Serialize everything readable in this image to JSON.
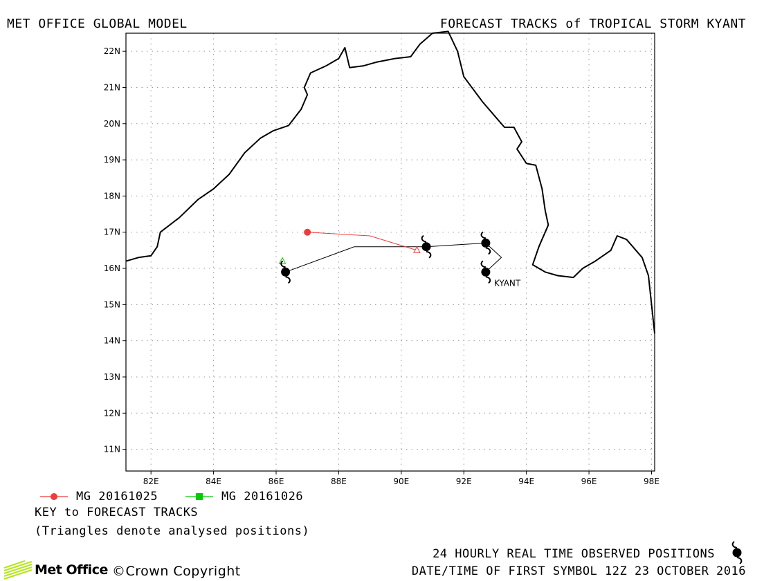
{
  "header": {
    "left_title": "MET OFFICE GLOBAL MODEL",
    "right_title": "FORECAST TRACKS of TROPICAL STORM KYANT"
  },
  "map": {
    "lon_ticks": [
      "82E",
      "84E",
      "86E",
      "88E",
      "90E",
      "92E",
      "94E",
      "96E",
      "98E"
    ],
    "lat_ticks": [
      "22N",
      "21N",
      "20N",
      "19N",
      "18N",
      "17N",
      "16N",
      "15N",
      "14N",
      "13N",
      "12N",
      "11N"
    ],
    "storm_label": "KYANT",
    "colors": {
      "track_red": "#ee3b3b",
      "track_green": "#00cc00",
      "observed": "#000000",
      "coast": "#000000"
    }
  },
  "chart_data": {
    "type": "map-tracks",
    "xlim": [
      81.2,
      98.1
    ],
    "ylim": [
      10.4,
      22.5
    ],
    "observed_track": {
      "name": "24 HOURLY REAL TIME OBSERVED POSITIONS",
      "points": [
        [
          92.7,
          15.9
        ],
        [
          92.7,
          16.7
        ],
        [
          90.8,
          16.6
        ],
        [
          86.3,
          15.9
        ]
      ]
    },
    "observed_path": [
      [
        92.7,
        15.9
      ],
      [
        93.2,
        16.3
      ],
      [
        92.7,
        16.7
      ],
      [
        90.8,
        16.6
      ],
      [
        88.5,
        16.6
      ],
      [
        86.3,
        15.9
      ]
    ],
    "forecast_tracks": [
      {
        "name": "MG 20161025",
        "color": "#ee3b3b",
        "points": [
          [
            87.0,
            17.0
          ],
          [
            89.0,
            16.9
          ],
          [
            90.5,
            16.5
          ]
        ],
        "analysed": [
          90.5,
          16.5
        ]
      },
      {
        "name": "MG 20161026",
        "color": "#00cc00",
        "points": [
          [
            86.2,
            16.2
          ]
        ],
        "analysed": [
          86.2,
          16.2
        ]
      }
    ],
    "coastline": [
      [
        81.2,
        16.2
      ],
      [
        81.6,
        16.3
      ],
      [
        82.0,
        16.35
      ],
      [
        82.2,
        16.6
      ],
      [
        82.3,
        17.0
      ],
      [
        82.9,
        17.4
      ],
      [
        83.5,
        17.9
      ],
      [
        84.0,
        18.2
      ],
      [
        84.5,
        18.6
      ],
      [
        85.0,
        19.2
      ],
      [
        85.5,
        19.6
      ],
      [
        85.9,
        19.8
      ],
      [
        86.4,
        19.95
      ],
      [
        86.8,
        20.4
      ],
      [
        87.0,
        20.8
      ],
      [
        86.9,
        21.0
      ],
      [
        87.1,
        21.4
      ],
      [
        87.6,
        21.6
      ],
      [
        88.0,
        21.8
      ],
      [
        88.2,
        22.1
      ],
      [
        88.35,
        21.55
      ],
      [
        88.8,
        21.6
      ],
      [
        89.2,
        21.7
      ],
      [
        89.8,
        21.8
      ],
      [
        90.3,
        21.85
      ],
      [
        90.6,
        22.2
      ],
      [
        91.0,
        22.5
      ],
      [
        91.5,
        22.55
      ],
      [
        91.8,
        22.0
      ],
      [
        92.0,
        21.3
      ],
      [
        92.6,
        20.6
      ],
      [
        93.0,
        20.2
      ],
      [
        93.3,
        19.9
      ],
      [
        93.6,
        19.9
      ],
      [
        93.85,
        19.5
      ],
      [
        93.7,
        19.3
      ],
      [
        94.0,
        18.9
      ],
      [
        94.3,
        18.85
      ],
      [
        94.5,
        18.2
      ],
      [
        94.6,
        17.6
      ],
      [
        94.7,
        17.2
      ],
      [
        94.4,
        16.6
      ],
      [
        94.2,
        16.1
      ],
      [
        94.6,
        15.9
      ],
      [
        95.0,
        15.8
      ],
      [
        95.5,
        15.75
      ],
      [
        95.8,
        16.0
      ],
      [
        96.2,
        16.2
      ],
      [
        96.7,
        16.5
      ],
      [
        96.9,
        16.9
      ],
      [
        97.2,
        16.8
      ],
      [
        97.4,
        16.6
      ],
      [
        97.7,
        16.3
      ],
      [
        97.9,
        15.8
      ],
      [
        98.0,
        15.0
      ],
      [
        98.1,
        14.2
      ]
    ]
  },
  "legend": {
    "entries": [
      {
        "label": "MG 20161025",
        "color": "#ee3b3b",
        "marker": "circle"
      },
      {
        "label": "MG 20161026",
        "color": "#00cc00",
        "marker": "square"
      }
    ],
    "key_text": "KEY to FORECAST TRACKS",
    "note": "(Triangles denote analysed positions)"
  },
  "footer": {
    "observed_text": "24 HOURLY REAL TIME OBSERVED POSITIONS",
    "datetime_text": "DATE/TIME OF FIRST SYMBOL 12Z 23 OCTOBER 2016",
    "logo_text": "Met Office",
    "copyright": "©Crown Copyright"
  }
}
